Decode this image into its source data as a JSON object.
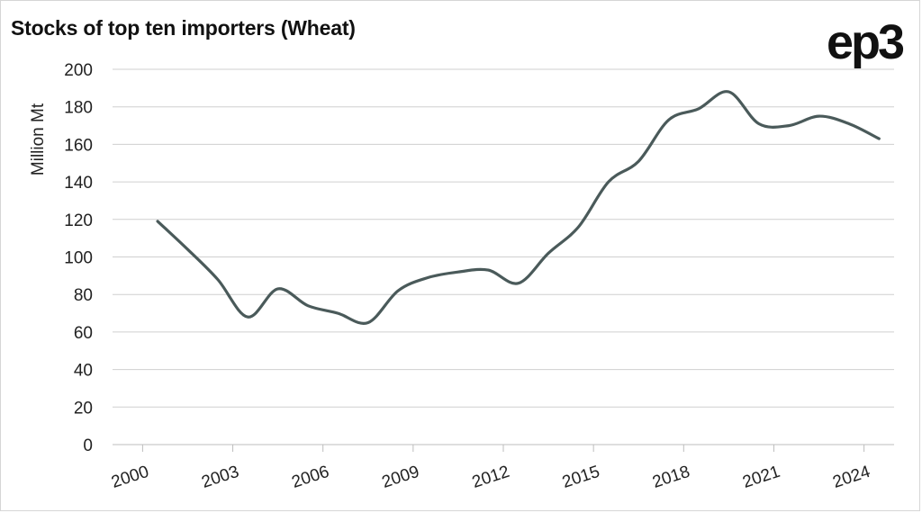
{
  "header": {
    "title": "Stocks of top ten importers (Wheat)",
    "logo_text": "ep3"
  },
  "chart_data": {
    "type": "line",
    "title": "Stocks of top ten importers (Wheat)",
    "ylabel": "Million Mt",
    "xlabel": "",
    "ylim": [
      0,
      200
    ],
    "yticks": [
      0,
      20,
      40,
      60,
      80,
      100,
      120,
      140,
      160,
      180,
      200
    ],
    "xlim": [
      1999,
      2025
    ],
    "xticks": [
      "2000",
      "2003",
      "2006",
      "2009",
      "2012",
      "2015",
      "2018",
      "2021",
      "2024"
    ],
    "grid": true,
    "line_color": "#4a5a5a",
    "series": [
      {
        "x": [
          2000.5,
          2001.5,
          2002.5,
          2003.5,
          2004.5,
          2005.5,
          2006.5,
          2007.5,
          2008.5,
          2009.5,
          2010.5,
          2011.5,
          2012.5,
          2013.5,
          2014.5,
          2015.5,
          2016.5,
          2017.5,
          2018.5,
          2019.5,
          2020.5,
          2021.5,
          2022.5,
          2023.5,
          2024.5
        ],
        "values": [
          119,
          104,
          88,
          68,
          83,
          74,
          70,
          65,
          82,
          89,
          92,
          93,
          86,
          102,
          116,
          140,
          151,
          173,
          179,
          188,
          171,
          170,
          175,
          171,
          163
        ]
      }
    ]
  }
}
